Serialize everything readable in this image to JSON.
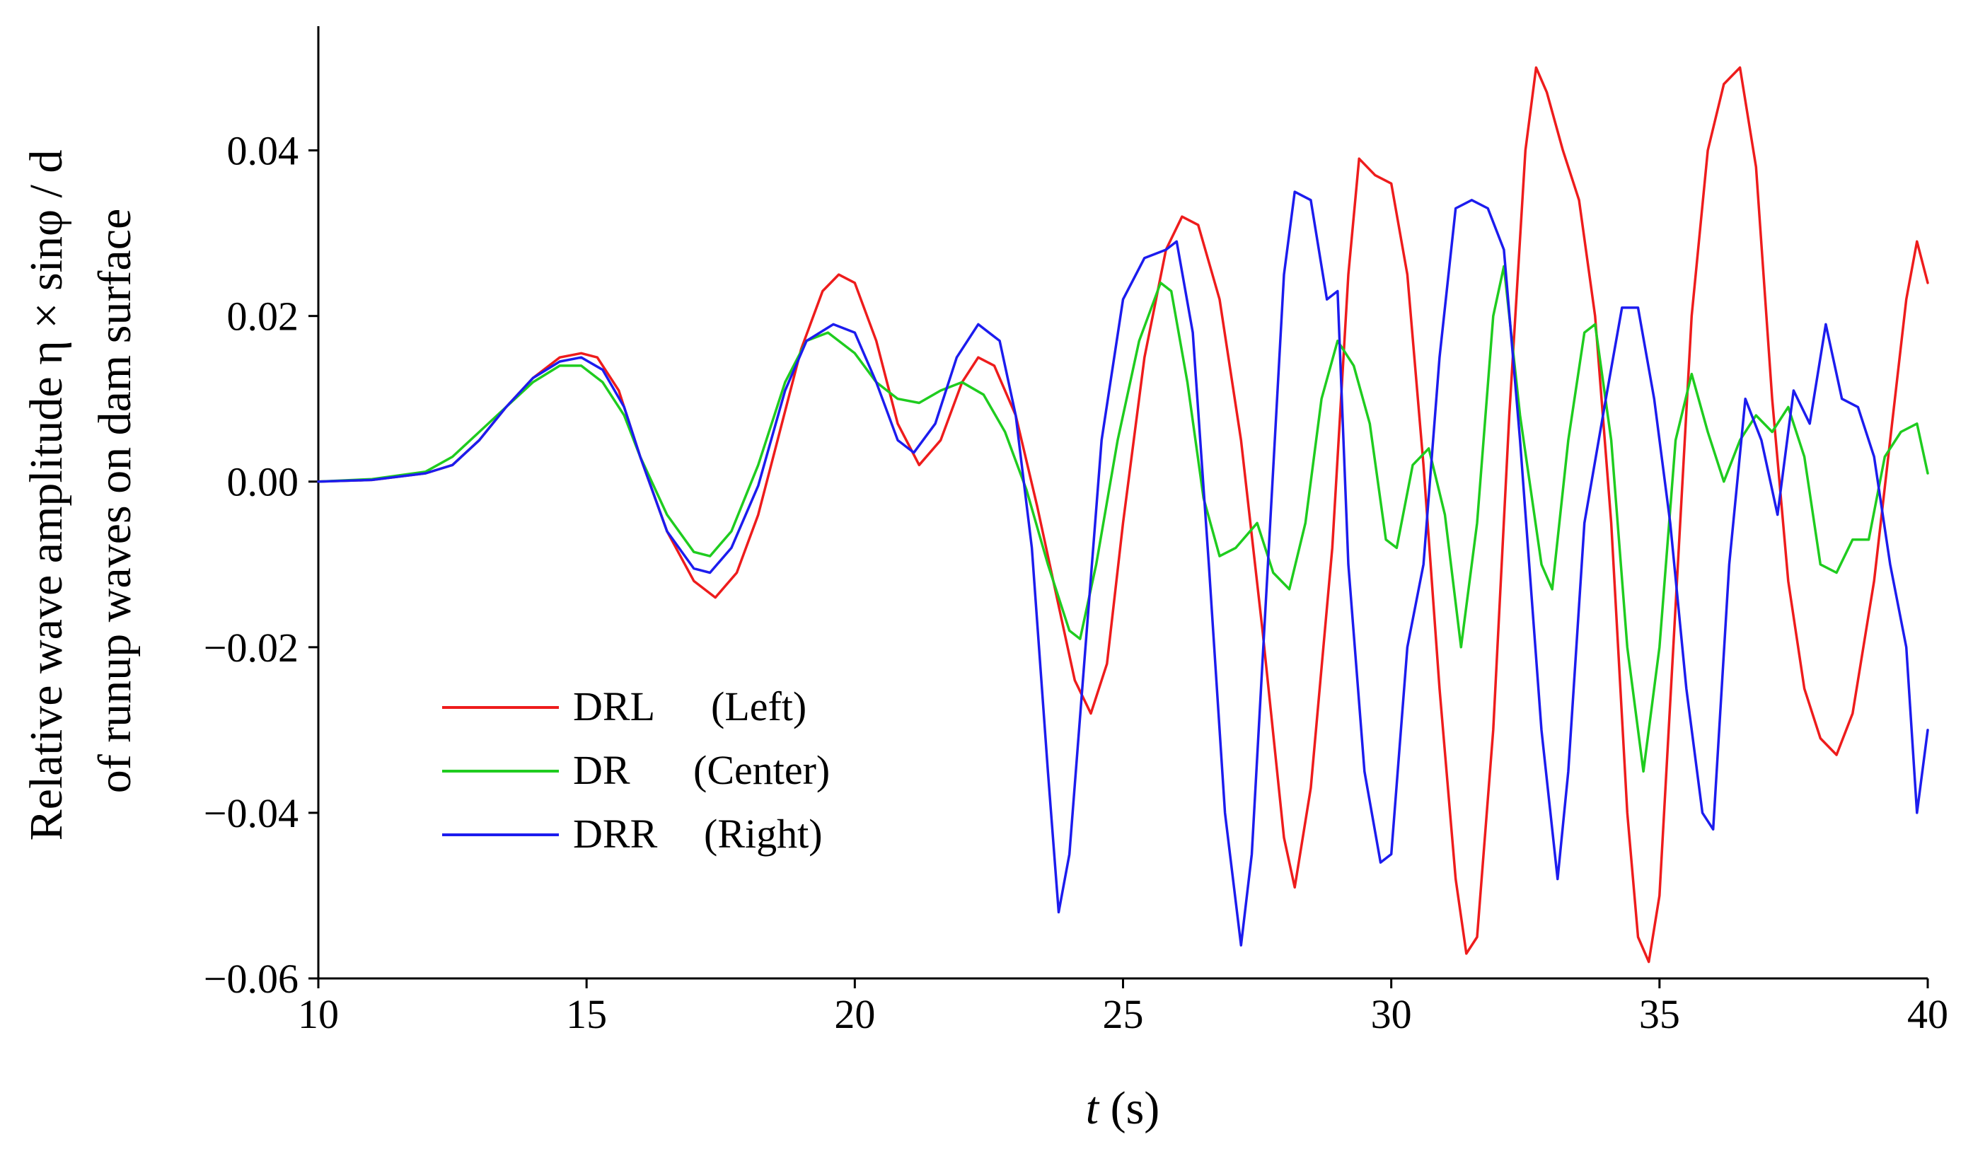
{
  "chart_data": {
    "type": "line",
    "title": "",
    "xlabel_italic": "t",
    "xlabel_rest": " (s)",
    "ylabel_line1": "Relative wave amplitude η × sinφ / d",
    "ylabel_line2": "of runup waves on dam surface",
    "xlim": [
      10,
      40
    ],
    "ylim": [
      -0.06,
      0.055
    ],
    "xticks": [
      10,
      15,
      20,
      25,
      30,
      35,
      40
    ],
    "xtick_labels": [
      "10",
      "15",
      "20",
      "25",
      "30",
      "35",
      "40"
    ],
    "yticks": [
      -0.06,
      -0.04,
      -0.02,
      0.0,
      0.02,
      0.04
    ],
    "ytick_labels": [
      "−0.06",
      "−0.04",
      "−0.02",
      "0.00",
      "0.02",
      "0.04"
    ],
    "grid": false,
    "legend_position": "lower-left",
    "series": [
      {
        "name": "DRL",
        "label_paren": "(Left)",
        "color": "#ee1c1c",
        "points": [
          [
            10,
            0
          ],
          [
            11,
            0.0002
          ],
          [
            12,
            0.001
          ],
          [
            12.5,
            0.002
          ],
          [
            13,
            0.005
          ],
          [
            13.5,
            0.009
          ],
          [
            14,
            0.0125
          ],
          [
            14.5,
            0.015
          ],
          [
            14.9,
            0.0155
          ],
          [
            15.2,
            0.015
          ],
          [
            15.6,
            0.011
          ],
          [
            16,
            0.003
          ],
          [
            16.5,
            -0.006
          ],
          [
            17,
            -0.012
          ],
          [
            17.4,
            -0.014
          ],
          [
            17.8,
            -0.011
          ],
          [
            18.2,
            -0.004
          ],
          [
            18.6,
            0.006
          ],
          [
            19,
            0.016
          ],
          [
            19.4,
            0.023
          ],
          [
            19.7,
            0.025
          ],
          [
            20,
            0.024
          ],
          [
            20.4,
            0.017
          ],
          [
            20.8,
            0.007
          ],
          [
            21.2,
            0.002
          ],
          [
            21.6,
            0.005
          ],
          [
            22,
            0.012
          ],
          [
            22.3,
            0.015
          ],
          [
            22.6,
            0.014
          ],
          [
            23,
            0.008
          ],
          [
            23.4,
            -0.003
          ],
          [
            23.8,
            -0.015
          ],
          [
            24.1,
            -0.024
          ],
          [
            24.4,
            -0.028
          ],
          [
            24.7,
            -0.022
          ],
          [
            25,
            -0.005
          ],
          [
            25.4,
            0.015
          ],
          [
            25.8,
            0.028
          ],
          [
            26.1,
            0.032
          ],
          [
            26.4,
            0.031
          ],
          [
            26.8,
            0.022
          ],
          [
            27.2,
            0.005
          ],
          [
            27.6,
            -0.018
          ],
          [
            28,
            -0.043
          ],
          [
            28.2,
            -0.049
          ],
          [
            28.5,
            -0.037
          ],
          [
            28.9,
            -0.008
          ],
          [
            29.2,
            0.025
          ],
          [
            29.4,
            0.039
          ],
          [
            29.7,
            0.037
          ],
          [
            30,
            0.036
          ],
          [
            30.3,
            0.025
          ],
          [
            30.6,
            0.002
          ],
          [
            30.9,
            -0.025
          ],
          [
            31.2,
            -0.048
          ],
          [
            31.4,
            -0.057
          ],
          [
            31.6,
            -0.055
          ],
          [
            31.9,
            -0.03
          ],
          [
            32.2,
            0.008
          ],
          [
            32.5,
            0.04
          ],
          [
            32.7,
            0.05
          ],
          [
            32.9,
            0.047
          ],
          [
            33.2,
            0.04
          ],
          [
            33.5,
            0.034
          ],
          [
            33.8,
            0.02
          ],
          [
            34.1,
            -0.005
          ],
          [
            34.4,
            -0.04
          ],
          [
            34.6,
            -0.055
          ],
          [
            34.8,
            -0.058
          ],
          [
            35,
            -0.05
          ],
          [
            35.3,
            -0.015
          ],
          [
            35.6,
            0.02
          ],
          [
            35.9,
            0.04
          ],
          [
            36.2,
            0.048
          ],
          [
            36.5,
            0.05
          ],
          [
            36.8,
            0.038
          ],
          [
            37.1,
            0.01
          ],
          [
            37.4,
            -0.012
          ],
          [
            37.7,
            -0.025
          ],
          [
            38,
            -0.031
          ],
          [
            38.3,
            -0.033
          ],
          [
            38.6,
            -0.028
          ],
          [
            39,
            -0.012
          ],
          [
            39.3,
            0.005
          ],
          [
            39.6,
            0.022
          ],
          [
            39.8,
            0.029
          ],
          [
            40,
            0.024
          ]
        ]
      },
      {
        "name": "DR",
        "label_paren": "(Center)",
        "color": "#1fcc1f",
        "points": [
          [
            10,
            0
          ],
          [
            11,
            0.0003
          ],
          [
            12,
            0.0012
          ],
          [
            12.5,
            0.003
          ],
          [
            13,
            0.006
          ],
          [
            13.5,
            0.009
          ],
          [
            14,
            0.012
          ],
          [
            14.5,
            0.014
          ],
          [
            14.9,
            0.014
          ],
          [
            15.3,
            0.012
          ],
          [
            15.7,
            0.008
          ],
          [
            16,
            0.003
          ],
          [
            16.5,
            -0.004
          ],
          [
            17,
            -0.0085
          ],
          [
            17.3,
            -0.009
          ],
          [
            17.7,
            -0.006
          ],
          [
            18.2,
            0.002
          ],
          [
            18.7,
            0.012
          ],
          [
            19.1,
            0.017
          ],
          [
            19.5,
            0.018
          ],
          [
            20,
            0.0155
          ],
          [
            20.4,
            0.012
          ],
          [
            20.8,
            0.01
          ],
          [
            21.2,
            0.0095
          ],
          [
            21.6,
            0.011
          ],
          [
            22,
            0.012
          ],
          [
            22.4,
            0.0105
          ],
          [
            22.8,
            0.006
          ],
          [
            23.2,
            -0.001
          ],
          [
            23.6,
            -0.01
          ],
          [
            24,
            -0.018
          ],
          [
            24.2,
            -0.019
          ],
          [
            24.5,
            -0.01
          ],
          [
            24.9,
            0.005
          ],
          [
            25.3,
            0.017
          ],
          [
            25.7,
            0.024
          ],
          [
            25.9,
            0.023
          ],
          [
            26.2,
            0.012
          ],
          [
            26.5,
            -0.002
          ],
          [
            26.8,
            -0.009
          ],
          [
            27.1,
            -0.008
          ],
          [
            27.5,
            -0.005
          ],
          [
            27.8,
            -0.011
          ],
          [
            28.1,
            -0.013
          ],
          [
            28.4,
            -0.005
          ],
          [
            28.7,
            0.01
          ],
          [
            29,
            0.017
          ],
          [
            29.3,
            0.014
          ],
          [
            29.6,
            0.007
          ],
          [
            29.9,
            -0.007
          ],
          [
            30.1,
            -0.008
          ],
          [
            30.4,
            0.002
          ],
          [
            30.7,
            0.004
          ],
          [
            31,
            -0.004
          ],
          [
            31.3,
            -0.02
          ],
          [
            31.6,
            -0.005
          ],
          [
            31.9,
            0.02
          ],
          [
            32.1,
            0.026
          ],
          [
            32.4,
            0.008
          ],
          [
            32.8,
            -0.01
          ],
          [
            33,
            -0.013
          ],
          [
            33.3,
            0.005
          ],
          [
            33.6,
            0.018
          ],
          [
            33.8,
            0.019
          ],
          [
            34.1,
            0.005
          ],
          [
            34.4,
            -0.02
          ],
          [
            34.7,
            -0.035
          ],
          [
            35,
            -0.02
          ],
          [
            35.3,
            0.005
          ],
          [
            35.6,
            0.013
          ],
          [
            35.9,
            0.006
          ],
          [
            36.2,
            0.0
          ],
          [
            36.5,
            0.005
          ],
          [
            36.8,
            0.008
          ],
          [
            37.1,
            0.006
          ],
          [
            37.4,
            0.009
          ],
          [
            37.7,
            0.003
          ],
          [
            38,
            -0.01
          ],
          [
            38.3,
            -0.011
          ],
          [
            38.6,
            -0.007
          ],
          [
            38.9,
            -0.007
          ],
          [
            39.2,
            0.003
          ],
          [
            39.5,
            0.006
          ],
          [
            39.8,
            0.007
          ],
          [
            40,
            0.001
          ]
        ]
      },
      {
        "name": "DRR",
        "label_paren": "(Right)",
        "color": "#1c1cee",
        "points": [
          [
            10,
            0
          ],
          [
            11,
            0.0002
          ],
          [
            12,
            0.001
          ],
          [
            12.5,
            0.002
          ],
          [
            13,
            0.005
          ],
          [
            13.5,
            0.009
          ],
          [
            14,
            0.0125
          ],
          [
            14.5,
            0.0145
          ],
          [
            14.9,
            0.015
          ],
          [
            15.3,
            0.0135
          ],
          [
            15.7,
            0.009
          ],
          [
            16,
            0.003
          ],
          [
            16.5,
            -0.006
          ],
          [
            17,
            -0.0105
          ],
          [
            17.3,
            -0.011
          ],
          [
            17.7,
            -0.008
          ],
          [
            18.2,
            -0.0005
          ],
          [
            18.7,
            0.011
          ],
          [
            19.1,
            0.017
          ],
          [
            19.6,
            0.019
          ],
          [
            20,
            0.018
          ],
          [
            20.4,
            0.012
          ],
          [
            20.8,
            0.005
          ],
          [
            21.1,
            0.0035
          ],
          [
            21.5,
            0.007
          ],
          [
            21.9,
            0.015
          ],
          [
            22.3,
            0.019
          ],
          [
            22.7,
            0.017
          ],
          [
            23,
            0.008
          ],
          [
            23.3,
            -0.008
          ],
          [
            23.6,
            -0.035
          ],
          [
            23.8,
            -0.052
          ],
          [
            24,
            -0.045
          ],
          [
            24.3,
            -0.02
          ],
          [
            24.6,
            0.005
          ],
          [
            25,
            0.022
          ],
          [
            25.4,
            0.027
          ],
          [
            25.8,
            0.028
          ],
          [
            26,
            0.029
          ],
          [
            26.3,
            0.018
          ],
          [
            26.6,
            -0.01
          ],
          [
            26.9,
            -0.04
          ],
          [
            27.2,
            -0.056
          ],
          [
            27.4,
            -0.045
          ],
          [
            27.7,
            -0.01
          ],
          [
            28,
            0.025
          ],
          [
            28.2,
            0.035
          ],
          [
            28.5,
            0.034
          ],
          [
            28.8,
            0.022
          ],
          [
            29,
            0.023
          ],
          [
            29.2,
            -0.01
          ],
          [
            29.5,
            -0.035
          ],
          [
            29.8,
            -0.046
          ],
          [
            30,
            -0.045
          ],
          [
            30.3,
            -0.02
          ],
          [
            30.6,
            -0.01
          ],
          [
            30.9,
            0.015
          ],
          [
            31.2,
            0.033
          ],
          [
            31.5,
            0.034
          ],
          [
            31.8,
            0.033
          ],
          [
            32.1,
            0.028
          ],
          [
            32.4,
            0.005
          ],
          [
            32.8,
            -0.03
          ],
          [
            33.1,
            -0.048
          ],
          [
            33.3,
            -0.035
          ],
          [
            33.6,
            -0.005
          ],
          [
            34,
            0.01
          ],
          [
            34.3,
            0.021
          ],
          [
            34.6,
            0.021
          ],
          [
            34.9,
            0.01
          ],
          [
            35.2,
            -0.005
          ],
          [
            35.5,
            -0.025
          ],
          [
            35.8,
            -0.04
          ],
          [
            36,
            -0.042
          ],
          [
            36.3,
            -0.01
          ],
          [
            36.6,
            0.01
          ],
          [
            36.9,
            0.005
          ],
          [
            37.2,
            -0.004
          ],
          [
            37.5,
            0.011
          ],
          [
            37.8,
            0.007
          ],
          [
            38.1,
            0.019
          ],
          [
            38.4,
            0.01
          ],
          [
            38.7,
            0.009
          ],
          [
            39,
            0.003
          ],
          [
            39.3,
            -0.01
          ],
          [
            39.6,
            -0.02
          ],
          [
            39.8,
            -0.04
          ],
          [
            40,
            -0.03
          ]
        ]
      }
    ]
  }
}
